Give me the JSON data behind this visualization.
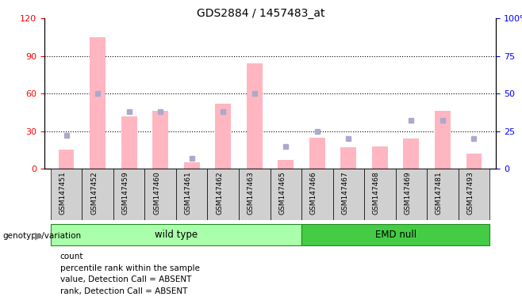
{
  "title": "GDS2884 / 1457483_at",
  "samples": [
    "GSM147451",
    "GSM147452",
    "GSM147459",
    "GSM147460",
    "GSM147461",
    "GSM147462",
    "GSM147463",
    "GSM147465",
    "GSM147466",
    "GSM147467",
    "GSM147468",
    "GSM147469",
    "GSM147481",
    "GSM147493"
  ],
  "value_absent": [
    15,
    105,
    42,
    46,
    5,
    52,
    84,
    7,
    25,
    17,
    18,
    24,
    46,
    12
  ],
  "rank_absent": [
    22,
    50,
    38,
    38,
    7,
    38,
    50,
    15,
    25,
    20,
    null,
    32,
    32,
    20
  ],
  "wild_type_count": 8,
  "emd_null_count": 6,
  "left_ylim": [
    0,
    120
  ],
  "right_ylim": [
    0,
    100
  ],
  "left_yticks": [
    0,
    30,
    60,
    90,
    120
  ],
  "right_yticks": [
    0,
    25,
    50,
    75,
    100
  ],
  "right_yticklabels": [
    "0",
    "25",
    "50",
    "75",
    "100%"
  ],
  "bar_color_pink": "#FFB6C1",
  "bar_color_lightblue": "#AAAACC",
  "wild_type_color": "#AAFFAA",
  "emd_null_color": "#44CC44",
  "legend_items": [
    {
      "color": "#FF2222",
      "label": "count"
    },
    {
      "color": "#2222FF",
      "label": "percentile rank within the sample"
    },
    {
      "color": "#FFB6B6",
      "label": "value, Detection Call = ABSENT"
    },
    {
      "color": "#AAAACC",
      "label": "rank, Detection Call = ABSENT"
    }
  ]
}
